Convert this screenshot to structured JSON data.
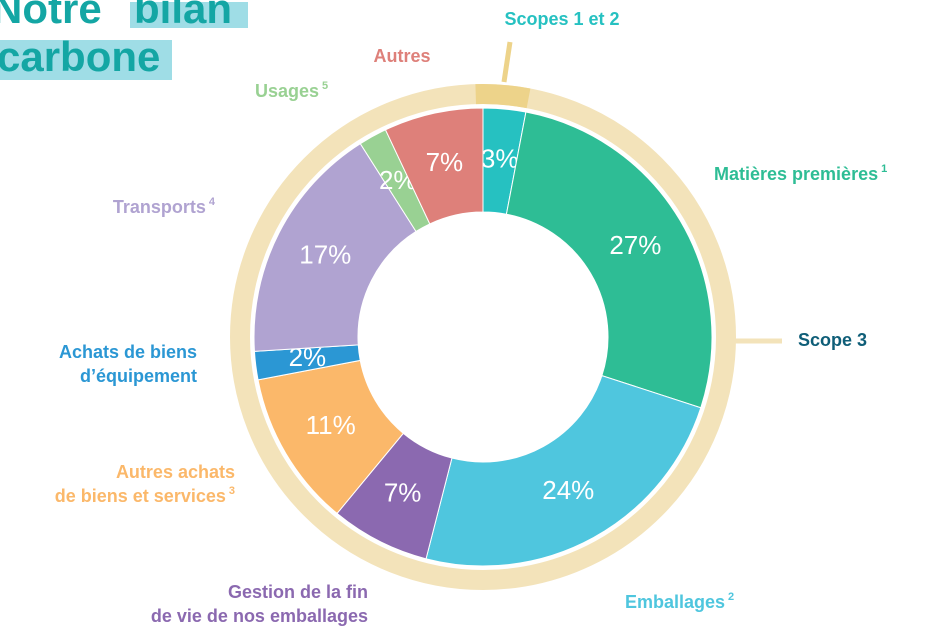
{
  "chart_data": {
    "type": "donut",
    "title": [
      "Notre",
      "bilan",
      "carbone"
    ],
    "annotations": [
      "Scope 3"
    ],
    "categories": [
      [
        "Scopes 1 et 2"
      ],
      [
        "Matières premières"
      ],
      [
        "Emballages"
      ],
      [
        "Gestion de la fin",
        "de vie de nos emballages"
      ],
      [
        "Autres achats",
        "de biens et services"
      ],
      [
        "Achats de biens",
        "d’équipement"
      ],
      [
        "Transports"
      ],
      [
        "Usages"
      ],
      [
        "Autres"
      ]
    ],
    "notes": [
      null,
      "1",
      "2",
      null,
      "3",
      null,
      "4",
      "5",
      null
    ],
    "values": [
      3,
      27,
      24,
      7,
      11,
      2,
      17,
      2,
      7
    ],
    "value_labels": [
      "3%",
      "27%",
      "24%",
      "7%",
      "11%",
      "2%",
      "17%",
      "2%",
      "7%"
    ],
    "colors": [
      "#26c1c1",
      "#2ebd95",
      "#4fc6de",
      "#8b69b0",
      "#fbb86a",
      "#2b97d4",
      "#b0a3d1",
      "#99d193",
      "#de807a"
    ]
  }
}
